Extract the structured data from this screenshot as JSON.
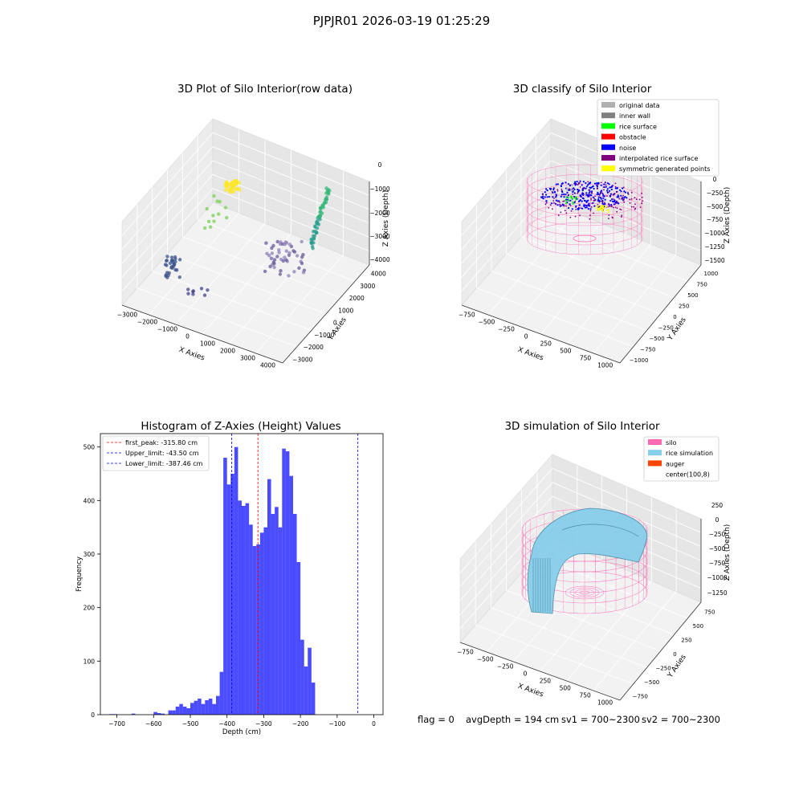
{
  "figure": {
    "suptitle": "PJPJR01 2026-03-19 01:25:29",
    "footer": {
      "flag": "flag = 0",
      "avg_depth": "avgDepth = 194 cm",
      "sv1": "sv1 = 700~2300",
      "sv2": "sv2 = 700~2300"
    }
  },
  "chart_data": [
    {
      "type": "scatter",
      "title": "3D Plot of Silo Interior(row data)",
      "xlabel": "X Axies",
      "ylabel": "Y Axies",
      "zlabel": "Z Axies (Depth)",
      "x_ticks": [
        -3000,
        -2000,
        -1000,
        0,
        1000,
        2000,
        3000,
        4000
      ],
      "y_ticks": [
        -3000,
        -2000,
        -1000,
        0,
        1000,
        2000,
        3000,
        4000
      ],
      "z_ticks": [
        0,
        -1000,
        -2000,
        -3000,
        -4000
      ],
      "colormap": "viridis"
    },
    {
      "type": "scatter",
      "title": "3D classify of Silo Interior",
      "xlabel": "X Axies",
      "ylabel": "Y Axies",
      "zlabel": "Z Axies (Depth)",
      "x_ticks": [
        -750,
        -500,
        -250,
        0,
        250,
        500,
        750,
        1000
      ],
      "y_ticks": [
        -1000,
        -750,
        -500,
        -250,
        0,
        250,
        500,
        750,
        1000
      ],
      "z_ticks": [
        0,
        -250,
        -500,
        -750,
        -1000,
        -1250,
        -1500
      ],
      "legend_position": "top-right",
      "legend": [
        {
          "label": "original data",
          "color": "#b0b0b0"
        },
        {
          "label": "inner wall",
          "color": "#808080"
        },
        {
          "label": "rice surface",
          "color": "#00ff00"
        },
        {
          "label": "obstacle",
          "color": "#ff0000"
        },
        {
          "label": "noise",
          "color": "#0000ff"
        },
        {
          "label": "interpolated rice surface",
          "color": "#800080"
        },
        {
          "label": "symmetric generated points",
          "color": "#ffff00"
        }
      ]
    },
    {
      "type": "bar",
      "title": "Histogram of Z-Axies (Height) Values",
      "xlabel": "Depth (cm)",
      "ylabel": "Frequency",
      "xlim": [
        -745,
        25
      ],
      "ylim": [
        0,
        525
      ],
      "x_ticks": [
        -700,
        -600,
        -500,
        -400,
        -300,
        -200,
        -100,
        0
      ],
      "y_ticks": [
        0,
        100,
        200,
        300,
        400,
        500
      ],
      "bar_color": "#0000ff",
      "bin_width": 10,
      "bins_left": [
        -720,
        -710,
        -700,
        -690,
        -680,
        -670,
        -660,
        -650,
        -640,
        -630,
        -620,
        -610,
        -600,
        -590,
        -580,
        -570,
        -560,
        -550,
        -540,
        -530,
        -520,
        -510,
        -500,
        -490,
        -480,
        -470,
        -460,
        -450,
        -440,
        -430,
        -420,
        -410,
        -400,
        -390,
        -380,
        -370,
        -360,
        -350,
        -340,
        -330,
        -320,
        -310,
        -300,
        -290,
        -280,
        -270,
        -260,
        -250,
        -240,
        -230,
        -220,
        -210,
        -200,
        -190,
        -180,
        -170,
        -160,
        -150,
        -140,
        -130,
        -120,
        -110,
        -100,
        -90,
        -80,
        -70,
        -60,
        -50,
        -40,
        -30,
        -20,
        -10
      ],
      "frequencies": [
        1,
        1,
        0,
        0,
        0,
        0,
        2,
        0,
        0,
        0,
        0,
        0,
        5,
        3,
        2,
        0,
        8,
        8,
        15,
        20,
        15,
        12,
        22,
        26,
        30,
        20,
        27,
        30,
        20,
        35,
        80,
        480,
        430,
        450,
        500,
        400,
        390,
        395,
        355,
        315,
        318,
        340,
        350,
        440,
        375,
        388,
        350,
        497,
        492,
        446,
        375,
        285,
        140,
        90,
        125,
        60,
        0,
        0,
        0,
        0,
        0,
        0,
        0,
        0,
        0,
        0,
        0,
        0,
        0,
        0,
        0,
        0
      ],
      "reference_lines": [
        {
          "label": "first_peak: -315.80 cm",
          "value": -315.8,
          "color": "#ff0000",
          "style": "dashed"
        },
        {
          "label": "Upper_limit: -43.50 cm",
          "value": -43.5,
          "color": "#0000ff",
          "style": "dashed"
        },
        {
          "label": "Lower_limit: -387.46 cm",
          "value": -387.46,
          "color": "#0000ff",
          "style": "dashed"
        }
      ],
      "legend_position": "top-left"
    },
    {
      "type": "area",
      "title": "3D simulation of Silo Interior",
      "xlabel": "X Axies",
      "ylabel": "Y Axies",
      "zlabel": "Z Axies (Depth)",
      "x_ticks": [
        -750,
        -500,
        -250,
        0,
        250,
        500,
        750,
        1000
      ],
      "y_ticks": [
        -750,
        -500,
        -250,
        0,
        250,
        500,
        750
      ],
      "z_ticks": [
        250,
        0,
        -250,
        -500,
        -750,
        -1000,
        -1250
      ],
      "legend_position": "top-right",
      "legend": [
        {
          "label": "silo",
          "color": "#ff69b4"
        },
        {
          "label": "rice simulation",
          "color": "#87ceeb"
        },
        {
          "label": "auger",
          "color": "#ff4500"
        },
        {
          "label": "center(100,8)",
          "color": "#ffffff"
        }
      ]
    }
  ]
}
